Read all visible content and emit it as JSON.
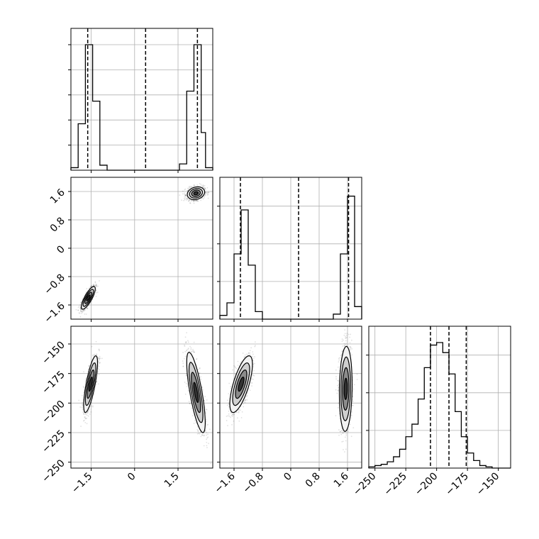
{
  "chart_data": [
    {
      "panel": "hist-param-1",
      "type": "histogram",
      "xlim": [
        -2.2,
        2.7
      ],
      "ylim": [
        0,
        1.13
      ],
      "bin_edges": [
        -2.2,
        -1.95,
        -1.7,
        -1.45,
        -1.2,
        -0.95,
        -0.7,
        -0.45,
        -0.2,
        0.05,
        0.3,
        0.55,
        0.8,
        1.05,
        1.3,
        1.55,
        1.8,
        2.05,
        2.3,
        2.45,
        2.7
      ],
      "counts": [
        0.02,
        0.37,
        1.0,
        0.55,
        0.04,
        0,
        0,
        0,
        0,
        0,
        0,
        0,
        0,
        0,
        0,
        0.05,
        0.63,
        1.0,
        0.3,
        0.02
      ],
      "quantile_lines": [
        -1.62,
        0.38,
        2.17
      ],
      "x_ticks": [
        -1.5,
        0.0,
        1.5
      ],
      "y_ticks": [
        0.2,
        0.4,
        0.6,
        0.8,
        1.0
      ],
      "grid": true
    },
    {
      "panel": "hist-param-2",
      "type": "histogram",
      "xlim": [
        -2.0,
        2.0
      ],
      "ylim": [
        0,
        1.13
      ],
      "bin_edges": [
        -2.0,
        -1.8,
        -1.6,
        -1.4,
        -1.2,
        -1.0,
        -0.8,
        -0.6,
        -0.4,
        -0.2,
        0.0,
        0.2,
        0.4,
        0.6,
        0.8,
        1.0,
        1.2,
        1.4,
        1.6,
        1.8,
        2.0
      ],
      "counts": [
        0.03,
        0.13,
        0.52,
        0.87,
        0.43,
        0.06,
        0,
        0,
        0,
        0,
        0,
        0,
        0,
        0,
        0,
        0,
        0.04,
        0.52,
        0.98,
        0.1
      ],
      "quantile_lines": [
        -1.42,
        0.22,
        1.63
      ],
      "x_ticks": [
        -1.6,
        -0.8,
        0.0,
        0.8,
        1.6
      ],
      "y_ticks": [
        0.3,
        0.6,
        0.9
      ],
      "grid": true
    },
    {
      "panel": "hist-param-3",
      "type": "histogram",
      "xlim": [
        -255,
        -140
      ],
      "ylim": [
        0,
        1.13
      ],
      "bin_edges": [
        -255,
        -250,
        -245,
        -240,
        -235,
        -230,
        -225,
        -220,
        -215,
        -210,
        -205,
        -200,
        -195,
        -190,
        -185,
        -180,
        -175,
        -170,
        -165,
        -160,
        -155,
        -150,
        -145,
        -140
      ],
      "counts": [
        0.01,
        0.02,
        0.03,
        0.05,
        0.09,
        0.15,
        0.25,
        0.35,
        0.55,
        0.8,
        0.98,
        1.0,
        0.92,
        0.75,
        0.45,
        0.25,
        0.12,
        0.06,
        0.02,
        0.01,
        0,
        0,
        0
      ],
      "quantile_lines": [
        -205,
        -190,
        -176
      ],
      "x_ticks": [
        -250,
        -225,
        -200,
        -175,
        -150
      ],
      "y_ticks": [
        0.3,
        0.6,
        0.9
      ],
      "grid": true
    },
    {
      "panel": "scatter-param-1-vs-param-2",
      "type": "scatter",
      "xlim": [
        -2.2,
        2.7
      ],
      "ylim": [
        -2.0,
        2.0
      ],
      "x_ticks": [
        -1.5,
        0.0,
        1.5
      ],
      "y_ticks": [
        -1.6,
        -0.8,
        0.0,
        0.8,
        1.6
      ],
      "clusters": [
        {
          "center": [
            -1.6,
            -1.4
          ],
          "spread": [
            0.12,
            0.16
          ],
          "rho": 0.8
        },
        {
          "center": [
            2.12,
            1.55
          ],
          "spread": [
            0.15,
            0.09
          ],
          "rho": 0.2
        }
      ],
      "grid": true
    },
    {
      "panel": "scatter-param-1-vs-param-3",
      "type": "scatter",
      "xlim": [
        -2.2,
        2.7
      ],
      "ylim": [
        -255,
        -135
      ],
      "x_ticks": [
        -1.5,
        0.0,
        1.5
      ],
      "y_ticks": [
        -250,
        -225,
        -200,
        -175,
        -150
      ],
      "clusters": [
        {
          "center": [
            -1.52,
            -184
          ],
          "spread": [
            0.12,
            12
          ],
          "rho": 0.75
        },
        {
          "center": [
            2.12,
            -191
          ],
          "spread": [
            0.16,
            17
          ],
          "rho": -0.75
        }
      ],
      "grid": true
    },
    {
      "panel": "scatter-param-2-vs-param-3",
      "type": "scatter",
      "xlim": [
        -2.0,
        2.0
      ],
      "ylim": [
        -255,
        -135
      ],
      "x_ticks": [
        -1.6,
        -0.8,
        0.0,
        0.8,
        1.6
      ],
      "y_ticks": [
        -250,
        -225,
        -200,
        -175,
        -150
      ],
      "clusters": [
        {
          "center": [
            -1.4,
            -184
          ],
          "spread": [
            0.16,
            12
          ],
          "rho": 0.7
        },
        {
          "center": [
            1.55,
            -188
          ],
          "spread": [
            0.09,
            18
          ],
          "rho": 0.1
        }
      ],
      "grid": true
    }
  ]
}
